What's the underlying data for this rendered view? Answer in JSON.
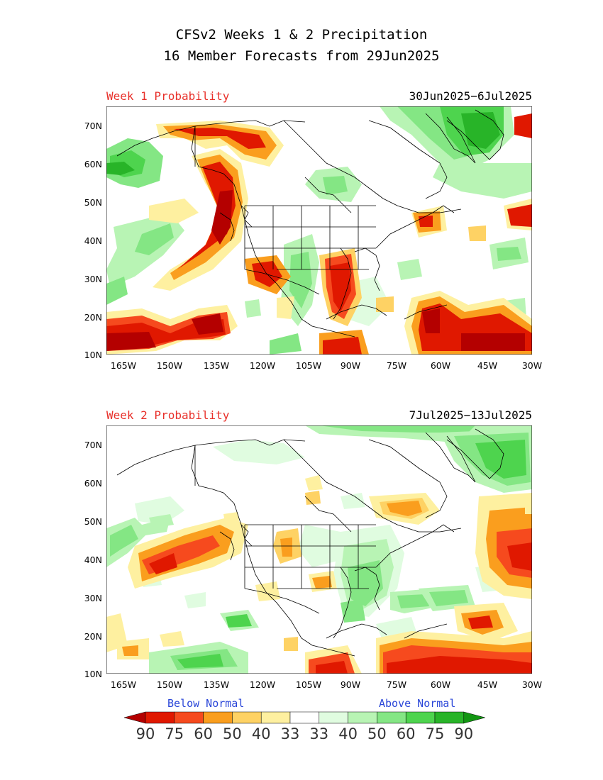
{
  "title_line1": "CFSv2 Weeks 1 & 2 Precipitation",
  "title_line2": "16 Member Forecasts from 29Jun2025",
  "panels": [
    {
      "label": "Week 1 Probability",
      "dates": "30Jun2025−6Jul2025"
    },
    {
      "label": "Week 2 Probability",
      "dates": "7Jul2025−13Jul2025"
    }
  ],
  "y_ticks": [
    "70N",
    "60N",
    "50N",
    "40N",
    "30N",
    "20N",
    "10N"
  ],
  "x_ticks": [
    "165W",
    "150W",
    "135W",
    "120W",
    "105W",
    "90W",
    "75W",
    "60W",
    "45W",
    "30W"
  ],
  "legend": {
    "below_label": "Below Normal",
    "above_label": "Above Normal",
    "values": [
      "90",
      "75",
      "60",
      "50",
      "40",
      "33",
      "33",
      "40",
      "50",
      "60",
      "75",
      "90"
    ],
    "colors": [
      "#b40000",
      "#e01800",
      "#f64a1e",
      "#fa9e1e",
      "#fed264",
      "#fef0a0",
      "#ffffff",
      "#e0fce0",
      "#b8f4b4",
      "#84e684",
      "#4ed44e",
      "#28b428",
      "#129612"
    ]
  }
}
